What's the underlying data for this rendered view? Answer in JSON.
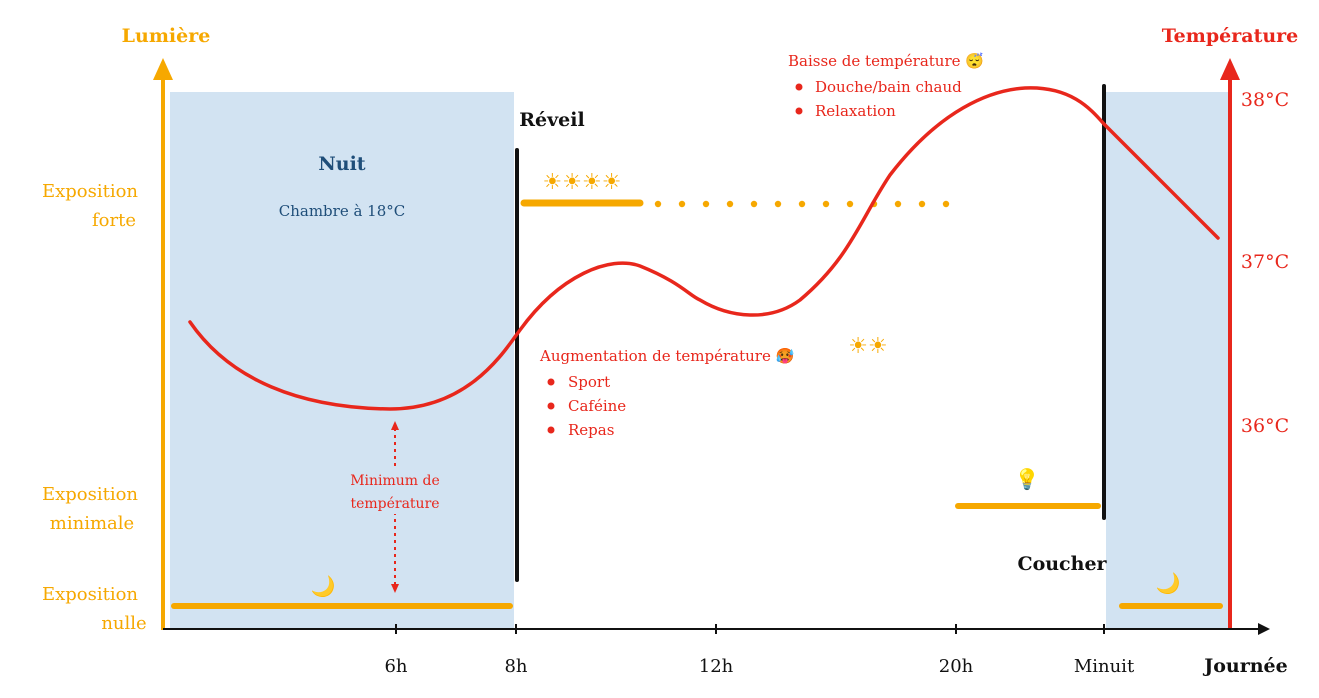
{
  "axes": {
    "left_title": "Lumière",
    "right_title": "Température",
    "x_title": "Journée",
    "light_levels": [
      {
        "lines": [
          "Exposition",
          "forte"
        ]
      },
      {
        "lines": [
          "Exposition",
          "minimale"
        ]
      },
      {
        "lines": [
          "Exposition",
          "nulle"
        ]
      }
    ],
    "temp_ticks": [
      "38°C",
      "37°C",
      "36°C"
    ],
    "x_ticks": [
      "6h",
      "8h",
      "12h",
      "20h",
      "Minuit"
    ]
  },
  "night": {
    "title": "Nuit",
    "subtitle": "Chambre à 18°C",
    "moon": "🌙"
  },
  "events": {
    "wake": "Réveil",
    "sleep": "Coucher"
  },
  "annotations": {
    "min_temp": [
      "Minimum de",
      "température"
    ],
    "increase": {
      "title": "Augmentation de température 🥵",
      "items": [
        "Sport",
        "Caféine",
        "Repas"
      ]
    },
    "decrease": {
      "title": "Baisse de température 😴",
      "items": [
        "Douche/bain chaud",
        "Relaxation"
      ]
    }
  },
  "symbols": {
    "sun_strong": "☀☀☀☀",
    "sun_medium": "☀☀",
    "bulb": "💡"
  },
  "colors": {
    "orange": "#F6A800",
    "red": "#E8271C",
    "night_fill": "#D2E3F2",
    "night_text": "#1F4E79",
    "black": "#111111"
  }
}
